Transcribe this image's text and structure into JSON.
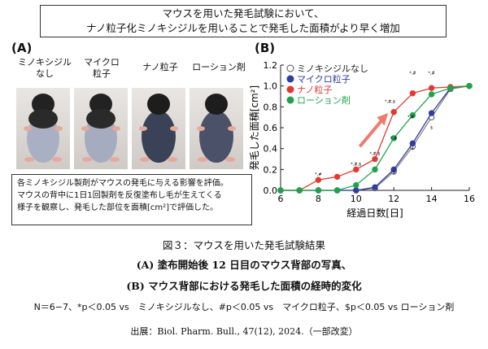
{
  "header": {
    "line1": "マウスを用いた発毛試験において、",
    "line2": "ナノ粒子化ミノキシジルを用いることで発毛した面積がより早く増加"
  },
  "panelA": {
    "label": "(A)",
    "photo_labels": [
      [
        "ミノキシジル",
        "なし"
      ],
      [
        "マイクロ",
        "粒子"
      ],
      [
        "ナノ粒子",
        ""
      ],
      [
        "ローション剤",
        ""
      ]
    ],
    "note": [
      "各ミノキシジル製剤がマウスの発毛に与える影響を評価。",
      "マウスの背中に1日1回製剤を反復塗布し毛が生えてくる",
      "様子を観察し、発毛した部位を面積[cm²]で評価した。"
    ]
  },
  "panelB": {
    "label": "(B)"
  },
  "chart_data": {
    "type": "line",
    "xlabel": "経過日数[日]",
    "ylabel": "発毛した面積[cm²]",
    "xlim": [
      6,
      16
    ],
    "ylim": [
      0,
      1.2
    ],
    "xticks": [
      6,
      8,
      10,
      12,
      14,
      16
    ],
    "yticks": [
      "0.0",
      "0.2",
      "0.4",
      "0.6",
      "0.8",
      "1.0",
      "1.2"
    ],
    "legend_position": "top-left",
    "series": [
      {
        "name": "ミノキシジルなし",
        "color": "#ffffff",
        "stroke": "#555555",
        "x": [
          6,
          7,
          8,
          9,
          10,
          11,
          12,
          13,
          14,
          15,
          16
        ],
        "y": [
          0,
          0,
          0,
          0,
          0,
          0.02,
          0.18,
          0.42,
          0.7,
          0.97,
          1.0
        ]
      },
      {
        "name": "マイクロ粒子",
        "color": "#2f3e9e",
        "stroke": "#2f3e9e",
        "x": [
          6,
          7,
          8,
          9,
          10,
          11,
          12,
          13,
          14,
          15,
          16
        ],
        "y": [
          0,
          0,
          0,
          0,
          0,
          0.03,
          0.2,
          0.45,
          0.74,
          0.98,
          1.0
        ]
      },
      {
        "name": "ナノ粒子",
        "color": "#e23b2e",
        "stroke": "#e23b2e",
        "x": [
          6,
          7,
          8,
          9,
          10,
          11,
          12,
          13,
          14,
          15,
          16
        ],
        "y": [
          0,
          0,
          0.1,
          0.13,
          0.2,
          0.3,
          0.75,
          0.93,
          0.98,
          0.99,
          1.0
        ]
      },
      {
        "name": "ローション剤",
        "color": "#1fa34a",
        "stroke": "#1fa34a",
        "x": [
          6,
          7,
          8,
          9,
          10,
          11,
          12,
          13,
          14,
          15,
          16
        ],
        "y": [
          0,
          0,
          0,
          0,
          0.05,
          0.2,
          0.5,
          0.72,
          0.92,
          0.98,
          1.0
        ]
      }
    ],
    "sig_marks": [
      {
        "x": 8,
        "y": 0.1,
        "text": "*,#"
      },
      {
        "x": 10,
        "y": 0.2,
        "text": "*,#,$"
      },
      {
        "x": 11,
        "y": 0.3,
        "text": "*,#,$"
      },
      {
        "x": 11.8,
        "y": 0.8,
        "text": "*,#,$"
      },
      {
        "x": 13,
        "y": 1.07,
        "text": "*,#"
      },
      {
        "x": 14,
        "y": 1.07,
        "text": "*,#"
      },
      {
        "x": 12,
        "y": 0.45,
        "text": "*,#"
      },
      {
        "x": 12.9,
        "y": 0.65,
        "text": "*,#"
      },
      {
        "x": 12,
        "y": 0.12,
        "text": "$"
      },
      {
        "x": 13,
        "y": 0.35,
        "text": "$"
      },
      {
        "x": 14,
        "y": 0.55,
        "text": "$"
      }
    ]
  },
  "figure_caption": {
    "title": "図３：マウスを用いた発毛試験結果",
    "line_a": "(A) 塗布開始後 12 日目のマウス背部の写真、",
    "line_b": "(B) マウス背部における発毛した面積の経時的変化",
    "stats": "N＝6−7、*p＜0.05 vs　ミノキシジルなし、#p＜0.05 vs　マイクロ粒子、$p＜0.05 vs ローション剤",
    "source": "出展：Biol. Pharm. Bull., 47(12), 2024.（一部改変）"
  }
}
